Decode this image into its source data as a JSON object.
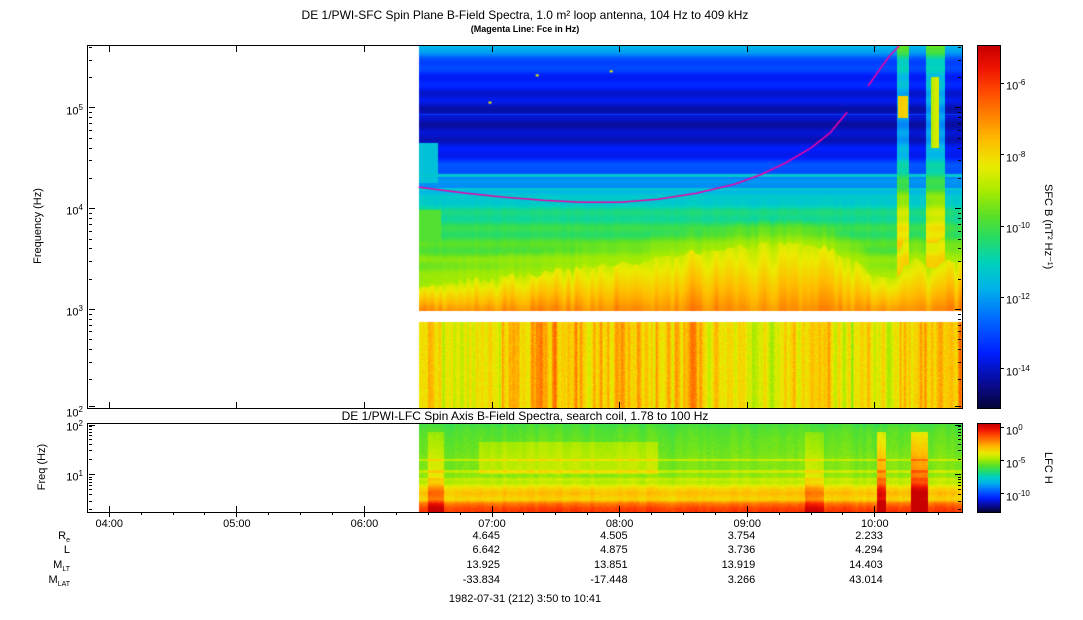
{
  "titles": {
    "sfc": "DE 1/PWI-SFC  Spin Plane B-Field Spectra, 1.0 m² loop antenna, 104 Hz to 409 kHz",
    "sfc_sub": "(Magenta Line: Fce in Hz)",
    "lfc": "DE 1/PWI-LFC  Spin Axis B-Field Spectra, search coil, 1.78 to 100 Hz"
  },
  "footer": "1982-07-31 (212) 3:50 to 10:41",
  "axes": {
    "sfc_y_label": "Frequency (Hz)",
    "lfc_y_label": "Freq (Hz)",
    "sfc_y_ticks_exp": [
      5,
      4,
      3,
      2
    ],
    "lfc_y_ticks_exp": [
      2,
      1
    ],
    "time_ticks": [
      "04:00",
      "05:00",
      "06:00",
      "07:00",
      "08:00",
      "09:00",
      "10:00"
    ],
    "time_tick_hours": [
      4,
      5,
      6,
      7,
      8,
      9,
      10
    ]
  },
  "colorbars": {
    "sfc": {
      "label": "SFC B (nT² Hz⁻¹)",
      "ticks_exp": [
        -6,
        -8,
        -10,
        -12,
        -14
      ],
      "log_range": [
        -15.1,
        -4.95
      ]
    },
    "lfc": {
      "label": "LFC H",
      "ticks_exp": [
        0,
        -5,
        -10
      ],
      "log_range": [
        -12.8,
        0.6
      ]
    }
  },
  "ephemeris": {
    "value_hours": [
      7,
      8,
      9,
      10
    ],
    "rows": [
      {
        "label": "R",
        "sub": "e",
        "values": [
          "4.645",
          "4.505",
          "3.754",
          "2.233"
        ]
      },
      {
        "label": "L",
        "sub": "",
        "values": [
          "6.642",
          "4.875",
          "3.736",
          "4.294"
        ]
      },
      {
        "label": "M",
        "sub": "LT",
        "values": [
          "13.925",
          "13.851",
          "13.919",
          "14.403"
        ]
      },
      {
        "label": "M",
        "sub": "LAT",
        "values": [
          "-33.834",
          "-17.448",
          "3.266",
          "43.014"
        ]
      }
    ]
  },
  "chart_meta": {
    "background": "#ffffff",
    "axis_color": "#000000",
    "colormap": [
      [
        0.0,
        5,
        5,
        60
      ],
      [
        0.06,
        10,
        10,
        140
      ],
      [
        0.15,
        0,
        30,
        255
      ],
      [
        0.25,
        0,
        110,
        255
      ],
      [
        0.33,
        0,
        180,
        235
      ],
      [
        0.4,
        0,
        210,
        190
      ],
      [
        0.47,
        40,
        220,
        100
      ],
      [
        0.53,
        90,
        225,
        40
      ],
      [
        0.6,
        170,
        235,
        0
      ],
      [
        0.67,
        235,
        235,
        0
      ],
      [
        0.74,
        255,
        190,
        0
      ],
      [
        0.81,
        255,
        130,
        0
      ],
      [
        0.88,
        255,
        70,
        0
      ],
      [
        0.94,
        240,
        20,
        0
      ],
      [
        1.0,
        200,
        0,
        0
      ]
    ]
  },
  "chart_data": [
    {
      "type": "heatmap",
      "name": "SFC spin-plane B-field spectrogram",
      "x_unit": "hours UT",
      "x_range": [
        3.8333,
        10.6833
      ],
      "data_start": 6.43,
      "freq_log_range": [
        2.017,
        5.612
      ],
      "freq_range_label": "104 Hz to 409 kHz",
      "value_label": "SFC B (nT² Hz⁻¹)",
      "value_log_range": [
        -15.1,
        -4.95
      ],
      "gap_log_range": [
        2.87,
        2.98
      ],
      "cyan_lines_logf": [
        4.19,
        4.33
      ],
      "faint_lines_logf": [
        4.93,
        5.38
      ],
      "profile": [
        [
          3.5,
          0.55
        ],
        [
          3.7,
          0.5
        ],
        [
          3.9,
          0.45
        ],
        [
          4.05,
          0.4
        ],
        [
          4.2,
          0.31
        ],
        [
          4.35,
          0.24
        ],
        [
          4.55,
          0.14
        ],
        [
          4.75,
          0.095
        ],
        [
          4.95,
          0.095
        ],
        [
          5.15,
          0.13
        ],
        [
          5.35,
          0.17
        ],
        [
          5.5,
          0.23
        ],
        [
          5.612,
          0.36
        ]
      ],
      "boundary": [
        [
          6.43,
          3.22
        ],
        [
          7.0,
          3.3
        ],
        [
          7.5,
          3.38
        ],
        [
          8.0,
          3.44
        ],
        [
          8.5,
          3.54
        ],
        [
          9.0,
          3.62
        ],
        [
          9.35,
          3.66
        ],
        [
          9.7,
          3.56
        ],
        [
          10.0,
          3.34
        ],
        [
          10.17,
          3.3
        ],
        [
          10.3,
          3.52
        ],
        [
          10.45,
          3.36
        ],
        [
          10.55,
          3.5
        ],
        [
          10.68,
          3.45
        ]
      ],
      "activity": [
        [
          6.43,
          0.6
        ],
        [
          6.55,
          0.85
        ],
        [
          6.7,
          0.55
        ],
        [
          7.05,
          0.8
        ],
        [
          7.3,
          0.95
        ],
        [
          7.6,
          0.9
        ],
        [
          7.95,
          0.95
        ],
        [
          8.35,
          0.9
        ],
        [
          8.65,
          0.8
        ],
        [
          8.95,
          0.55
        ],
        [
          9.25,
          0.65
        ],
        [
          9.55,
          0.8
        ],
        [
          9.85,
          0.6
        ],
        [
          10.1,
          0.65
        ],
        [
          10.25,
          0.9
        ],
        [
          10.4,
          0.95
        ],
        [
          10.55,
          0.75
        ],
        [
          10.68,
          0.9
        ]
      ],
      "bright_columns": [
        [
          10.17,
          10.27
        ],
        [
          10.4,
          10.55
        ]
      ],
      "red_spots": [
        {
          "t": [
            10.18,
            10.26
          ],
          "logf": [
            4.9,
            5.12
          ],
          "p": 0.6
        },
        {
          "t": [
            10.44,
            10.5
          ],
          "logf": [
            4.6,
            5.3
          ],
          "p": 0.5
        }
      ],
      "start_blobs": [
        {
          "t": [
            6.43,
            6.58
          ],
          "logf": [
            4.25,
            4.65
          ],
          "p": 0.36
        },
        {
          "t": [
            6.43,
            6.6
          ],
          "logf": [
            3.66,
            3.98
          ],
          "p": 0.52
        }
      ],
      "speckles": [
        [
          7.35,
          5.32
        ],
        [
          7.93,
          5.36
        ],
        [
          6.98,
          5.05
        ]
      ],
      "fce_line": {
        "color": "#ee00aa",
        "width": 1.6,
        "segments": [
          [
            [
              6.43,
              4.21
            ],
            [
              6.8,
              4.15
            ],
            [
              7.1,
              4.11
            ],
            [
              7.4,
              4.08
            ],
            [
              7.7,
              4.06
            ],
            [
              8.0,
              4.06
            ],
            [
              8.3,
              4.09
            ],
            [
              8.6,
              4.15
            ],
            [
              8.9,
              4.24
            ],
            [
              9.1,
              4.33
            ],
            [
              9.3,
              4.45
            ],
            [
              9.5,
              4.6
            ],
            [
              9.65,
              4.75
            ],
            [
              9.78,
              4.95
            ]
          ],
          [
            [
              9.95,
              5.22
            ],
            [
              10.05,
              5.4
            ],
            [
              10.12,
              5.52
            ],
            [
              10.19,
              5.612
            ]
          ]
        ]
      }
    },
    {
      "type": "heatmap",
      "name": "LFC spin-axis B-field spectrogram",
      "x_unit": "hours UT",
      "x_range": [
        3.8333,
        10.6833
      ],
      "data_start": 6.43,
      "freq_log_range": [
        0.25,
        2.0
      ],
      "freq_range_label": "1.78 to 100 Hz",
      "value_label": "LFC H",
      "value_log_range": [
        -12.8,
        0.6
      ],
      "profile": [
        [
          0.25,
          0.9
        ],
        [
          0.33,
          0.88
        ],
        [
          0.42,
          0.82
        ],
        [
          0.5,
          0.7
        ],
        [
          0.62,
          0.74
        ],
        [
          0.72,
          0.7
        ],
        [
          0.82,
          0.62
        ],
        [
          0.95,
          0.58
        ],
        [
          1.1,
          0.56
        ],
        [
          1.3,
          0.56
        ],
        [
          1.5,
          0.545
        ],
        [
          1.7,
          0.535
        ],
        [
          1.9,
          0.52
        ],
        [
          2.0,
          0.5
        ]
      ],
      "stripes_logf": [
        1.28,
        1.06,
        0.9
      ],
      "warm_patch": {
        "t": [
          6.9,
          8.3
        ],
        "logf": [
          1.0,
          1.65
        ],
        "boost": 0.06
      },
      "streaks": [
        [
          10.02,
          10.09,
          0.28
        ],
        [
          10.28,
          10.42,
          0.32
        ],
        [
          6.5,
          6.62,
          0.12
        ],
        [
          9.45,
          9.6,
          0.1
        ]
      ],
      "noise_amp": 0.05
    }
  ]
}
